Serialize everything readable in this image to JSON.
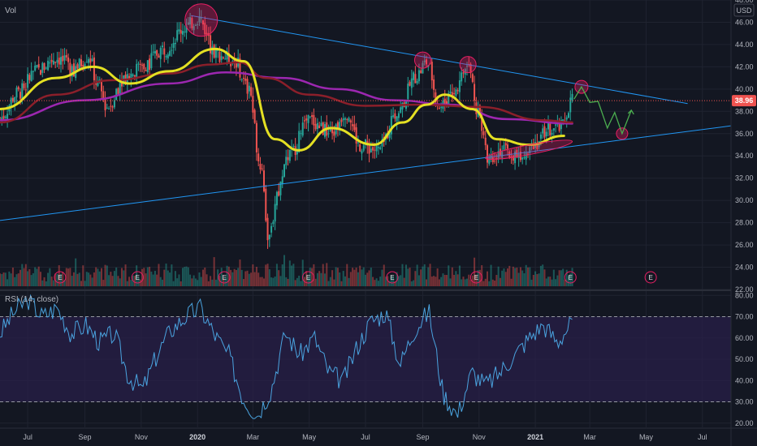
{
  "labels": {
    "vol": "Vol",
    "rsi": "RSI (14, close)",
    "currency": "USD",
    "last_price": "38.96",
    "earnings_marker": "E"
  },
  "colors": {
    "background": "#131722",
    "grid": "#1f2330",
    "up": "#26a69a",
    "down": "#ef5350",
    "sma_short": "#e4e023",
    "sma_mid": "#8b1f2a",
    "sma_long": "#9c27b0",
    "trendline": "#2196f3",
    "highlight": "#e91e63",
    "projection": "#4caf50",
    "rsi_line": "#4aa3df",
    "rsi_band": "#2a1f4a",
    "price_tag": "#ef5350"
  },
  "chart_data": [
    {
      "type": "candlestick",
      "currency": "USD",
      "x_ticks": [
        "Jul",
        "Sep",
        "Nov",
        "2020",
        "Mar",
        "May",
        "Jul",
        "Sep",
        "Nov",
        "2021",
        "Mar",
        "May",
        "Jul"
      ],
      "y_ticks": [
        22.0,
        24.0,
        26.0,
        28.0,
        30.0,
        32.0,
        34.0,
        36.0,
        38.0,
        40.0,
        42.0,
        44.0,
        46.0,
        48.0
      ],
      "y_range": [
        22,
        48
      ],
      "x_range": [
        "2019-06-01",
        "2021-08-01"
      ],
      "last_price": 38.96,
      "price_path": [
        [
          "2019-06-01",
          37.4
        ],
        [
          "2019-06-20",
          39.6
        ],
        [
          "2019-07-10",
          41.6
        ],
        [
          "2019-08-01",
          42.8
        ],
        [
          "2019-08-20",
          41.8
        ],
        [
          "2019-09-05",
          43.0
        ],
        [
          "2019-09-15",
          40.4
        ],
        [
          "2019-09-25",
          38.4
        ],
        [
          "2019-10-15",
          41.2
        ],
        [
          "2019-11-05",
          42.2
        ],
        [
          "2019-11-25",
          43.6
        ],
        [
          "2019-12-20",
          45.6
        ],
        [
          "2020-01-02",
          46.4
        ],
        [
          "2020-01-20",
          43.2
        ],
        [
          "2020-02-10",
          42.6
        ],
        [
          "2020-02-25",
          40.0
        ],
        [
          "2020-03-10",
          33.0
        ],
        [
          "2020-03-18",
          26.5
        ],
        [
          "2020-03-28",
          30.8
        ],
        [
          "2020-04-10",
          34.2
        ],
        [
          "2020-05-01",
          37.2
        ],
        [
          "2020-05-25",
          36.0
        ],
        [
          "2020-06-10",
          38.0
        ],
        [
          "2020-06-25",
          35.0
        ],
        [
          "2020-07-15",
          34.5
        ],
        [
          "2020-08-05",
          38.0
        ],
        [
          "2020-08-25",
          41.2
        ],
        [
          "2020-09-05",
          42.4
        ],
        [
          "2020-09-20",
          38.4
        ],
        [
          "2020-10-05",
          40.0
        ],
        [
          "2020-10-20",
          42.0
        ],
        [
          "2020-11-01",
          37.8
        ],
        [
          "2020-11-10",
          33.8
        ],
        [
          "2020-11-25",
          34.5
        ],
        [
          "2020-12-10",
          34.0
        ],
        [
          "2021-01-01",
          35.2
        ],
        [
          "2021-01-15",
          36.4
        ],
        [
          "2021-01-28",
          36.5
        ],
        [
          "2021-02-10",
          38.96
        ]
      ],
      "moving_averages": [
        {
          "points": [
            [
              "2019-06-01",
              38.2
            ],
            [
              "2019-08-01",
              41.0
            ],
            [
              "2019-09-10",
              42.0
            ],
            [
              "2019-10-20",
              40.5
            ],
            [
              "2019-12-01",
              41.6
            ],
            [
              "2020-01-20",
              43.6
            ],
            [
              "2020-02-20",
              42.5
            ],
            [
              "2020-03-25",
              35.5
            ],
            [
              "2020-04-20",
              34.5
            ],
            [
              "2020-05-25",
              36.5
            ],
            [
              "2020-07-10",
              35.0
            ],
            [
              "2020-08-10",
              37.0
            ],
            [
              "2020-09-05",
              38.6
            ],
            [
              "2020-09-25",
              39.5
            ],
            [
              "2020-10-25",
              38.2
            ],
            [
              "2020-11-20",
              35.5
            ],
            [
              "2020-12-25",
              35.0
            ],
            [
              "2021-02-01",
              35.8
            ]
          ]
        },
        {
          "points": [
            [
              "2019-06-01",
              37.0
            ],
            [
              "2019-08-01",
              39.5
            ],
            [
              "2019-10-01",
              40.8
            ],
            [
              "2019-12-01",
              41.4
            ],
            [
              "2020-01-15",
              42.2
            ],
            [
              "2020-02-15",
              42.4
            ],
            [
              "2020-03-15",
              41.0
            ],
            [
              "2020-05-01",
              39.5
            ],
            [
              "2020-07-01",
              38.5
            ],
            [
              "2020-09-01",
              38.6
            ],
            [
              "2020-11-01",
              38.4
            ],
            [
              "2021-01-10",
              37.2
            ],
            [
              "2021-02-10",
              37.0
            ]
          ]
        },
        {
          "points": [
            [
              "2019-06-01",
              37.2
            ],
            [
              "2019-09-01",
              39.0
            ],
            [
              "2019-12-01",
              40.5
            ],
            [
              "2020-02-01",
              41.5
            ],
            [
              "2020-04-01",
              41.0
            ],
            [
              "2020-06-01",
              40.0
            ],
            [
              "2020-08-01",
              39.0
            ],
            [
              "2020-10-01",
              38.6
            ],
            [
              "2020-12-01",
              37.3
            ],
            [
              "2021-02-10",
              36.9
            ]
          ]
        }
      ],
      "annotations": {
        "trendlines": [
          {
            "from": [
              "2019-12-25",
              46.6
            ],
            "to": [
              "2021-06-15",
              38.7
            ]
          },
          {
            "from": [
              "2019-06-01",
              28.2
            ],
            "to": [
              "2021-08-01",
              36.7
            ]
          }
        ],
        "circles": [
          {
            "at": [
              "2020-01-05",
              46.2
            ]
          },
          {
            "at": [
              "2020-09-01",
              42.6
            ]
          },
          {
            "at": [
              "2020-10-20",
              42.2
            ]
          },
          {
            "at": [
              "2021-02-20",
              40.2
            ]
          },
          {
            "at": [
              "2021-04-05",
              36.0
            ]
          }
        ],
        "ellipse": {
          "from": [
            "2020-11-08",
            33.8
          ],
          "to": [
            "2021-02-10",
            35.3
          ]
        },
        "projection": [
          [
            "2021-02-12",
            39.1
          ],
          [
            "2021-02-20",
            40.2
          ],
          [
            "2021-03-01",
            38.8
          ],
          [
            "2021-03-10",
            38.9
          ],
          [
            "2021-03-20",
            36.5
          ],
          [
            "2021-03-28",
            37.9
          ],
          [
            "2021-04-05",
            36.0
          ],
          [
            "2021-04-15",
            38.1
          ]
        ],
        "earnings_dates": [
          "2019-08-05",
          "2019-10-28",
          "2020-01-30",
          "2020-04-30",
          "2020-07-30",
          "2020-10-29",
          "2021-02-08",
          "2021-05-06"
        ]
      }
    },
    {
      "type": "line",
      "series": [
        {
          "name": "RSI (14, close)",
          "values": [
            62,
            72,
            78,
            70,
            74,
            62,
            66,
            58,
            62,
            42,
            36,
            52,
            64,
            70,
            74,
            62,
            52,
            32,
            24,
            36,
            62,
            52,
            60,
            44,
            40,
            56,
            68,
            72,
            48,
            64,
            72,
            34,
            24,
            44,
            38,
            44,
            52,
            60,
            66,
            58,
            67
          ]
        }
      ],
      "y_ticks": [
        20.0,
        30.0,
        40.0,
        50.0,
        60.0,
        70.0,
        80.0
      ],
      "y_range": [
        18,
        82
      ],
      "reference_lines": [
        30,
        70
      ]
    }
  ]
}
